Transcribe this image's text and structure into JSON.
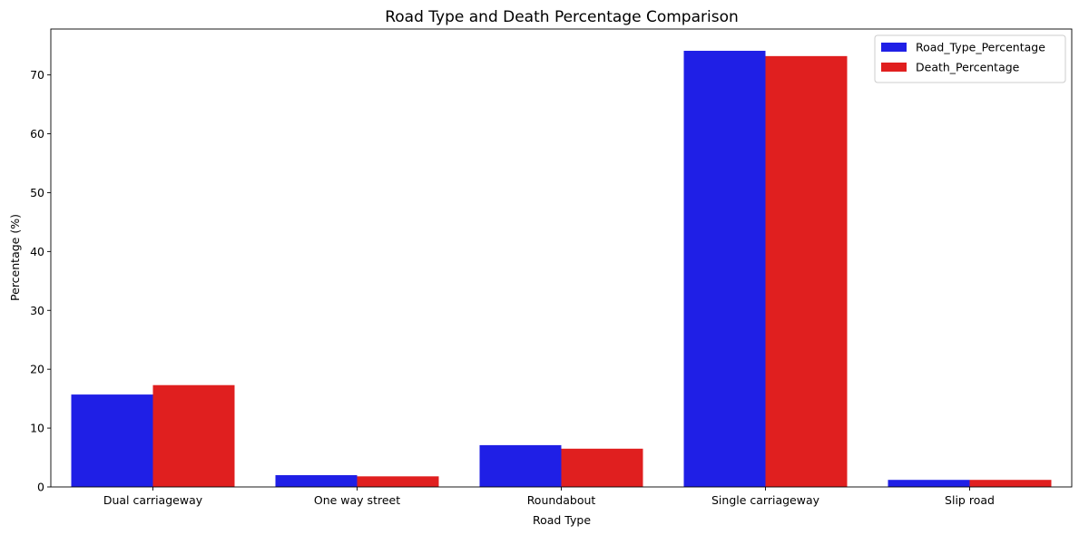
{
  "chart_data": {
    "type": "bar",
    "title": "Road Type and Death Percentage Comparison",
    "xlabel": "Road Type",
    "ylabel": "Percentage (%)",
    "categories": [
      "Dual carriageway",
      "One way street",
      "Roundabout",
      "Single carriageway",
      "Slip road"
    ],
    "series": [
      {
        "name": "Road_Type_Percentage",
        "color": "#1f1fe6",
        "values": [
          15.7,
          2.0,
          7.1,
          74.1,
          1.2
        ]
      },
      {
        "name": "Death_Percentage",
        "color": "#e01f1f",
        "values": [
          17.3,
          1.8,
          6.5,
          73.2,
          1.2
        ]
      }
    ],
    "ylim": [
      0,
      77.8
    ],
    "yticks": [
      0,
      10,
      20,
      30,
      40,
      50,
      60,
      70
    ],
    "grid": false,
    "legend": "top-right"
  }
}
